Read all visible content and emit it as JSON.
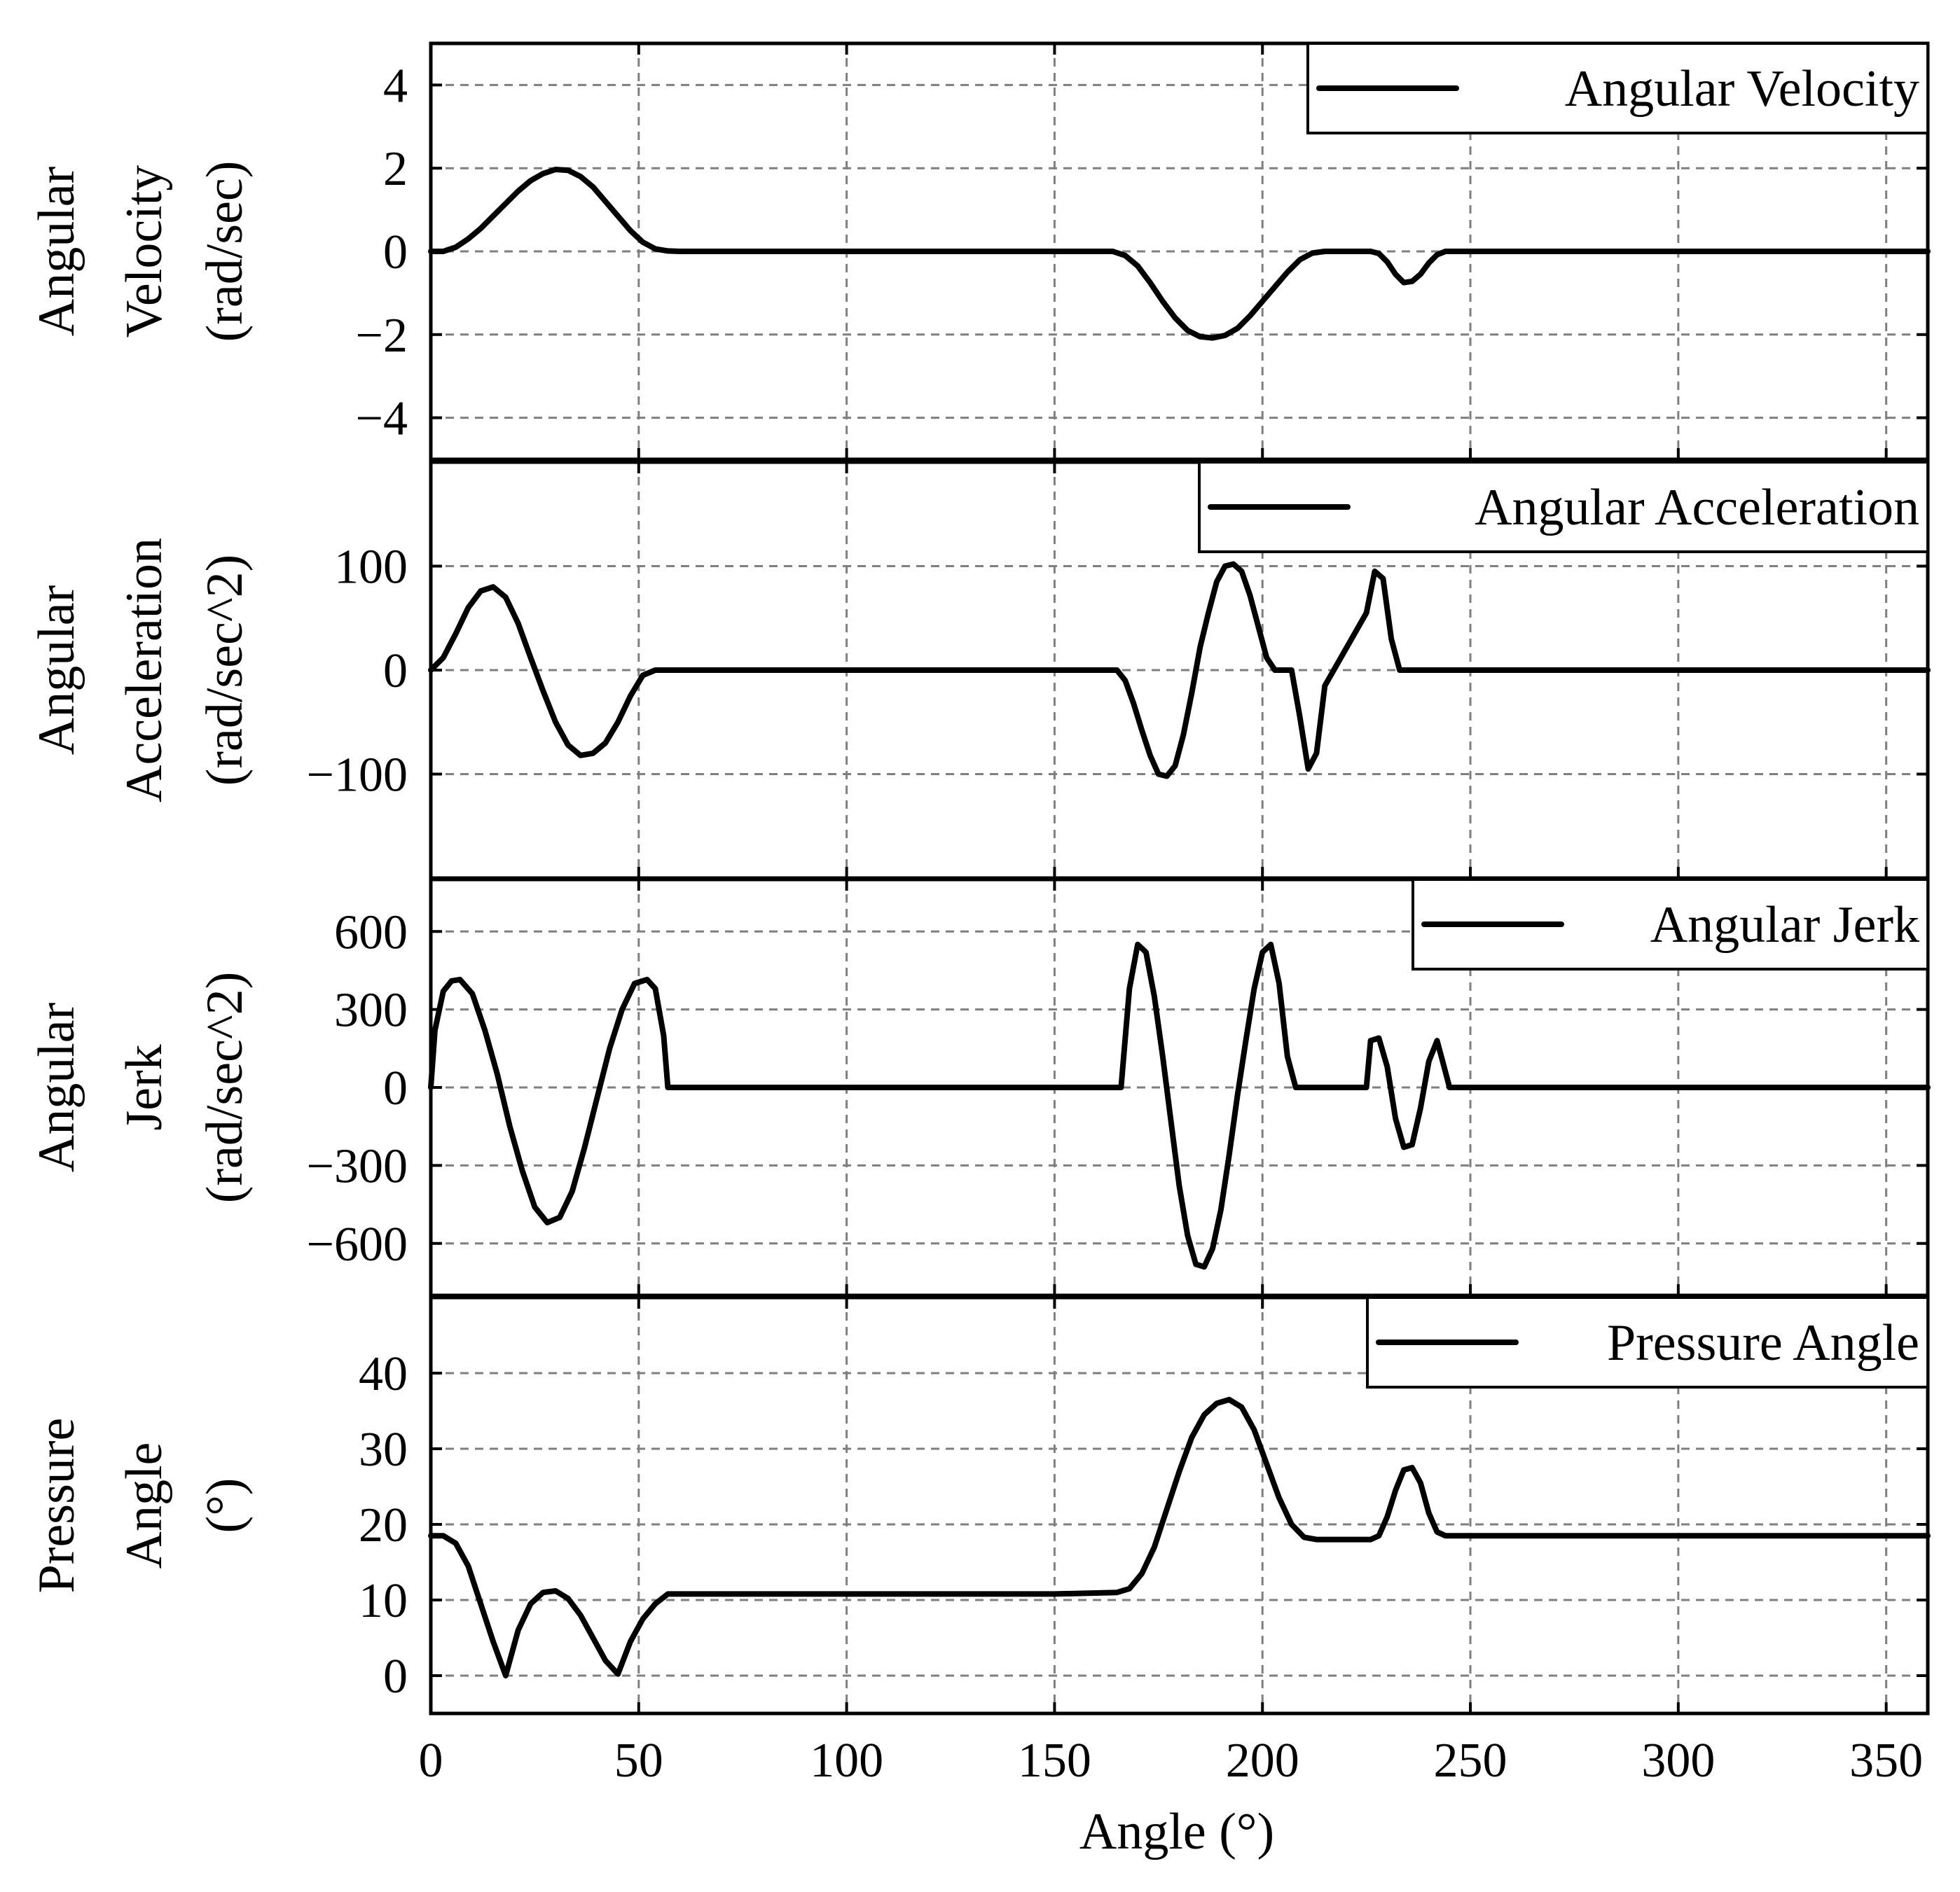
{
  "chart_data": [
    {
      "type": "line",
      "name": "velocity",
      "ylabel_lines": [
        "Angular",
        "Velocity",
        "(rad/sec)"
      ],
      "ylim": [
        -5,
        5
      ],
      "yticks": [
        4,
        2,
        0,
        -2,
        -4
      ],
      "ytick_labels": [
        "4",
        "2",
        "0",
        "−2",
        "−4"
      ],
      "legend": "Angular Velocity",
      "x": [
        0,
        3,
        6,
        9,
        12,
        15,
        18,
        21,
        24,
        27,
        30,
        33,
        36,
        39,
        42,
        45,
        48,
        51,
        54,
        57,
        60,
        100,
        150,
        164,
        167,
        170,
        173,
        176,
        179,
        182,
        185,
        188,
        191,
        194,
        197,
        200,
        203,
        206,
        209,
        212,
        215,
        224,
        226,
        228,
        230,
        232,
        234,
        236,
        238,
        240,
        242,
        244,
        246,
        300,
        360
      ],
      "y": [
        0,
        0,
        0.1,
        0.3,
        0.55,
        0.85,
        1.15,
        1.45,
        1.7,
        1.87,
        1.97,
        1.95,
        1.8,
        1.55,
        1.2,
        0.85,
        0.5,
        0.22,
        0.06,
        0.01,
        0,
        0,
        0,
        0,
        -0.1,
        -0.35,
        -0.75,
        -1.2,
        -1.6,
        -1.9,
        -2.05,
        -2.08,
        -2.02,
        -1.85,
        -1.55,
        -1.2,
        -0.85,
        -0.5,
        -0.2,
        -0.04,
        0,
        0,
        0,
        -0.05,
        -0.25,
        -0.55,
        -0.75,
        -0.72,
        -0.55,
        -0.28,
        -0.08,
        0,
        0,
        0,
        0
      ]
    },
    {
      "type": "line",
      "name": "acceleration",
      "ylabel_lines": [
        "Angular",
        "Acceleration",
        "(rad/sec^2)"
      ],
      "ylim": [
        -200,
        200
      ],
      "yticks": [
        100,
        0,
        -100
      ],
      "ytick_labels": [
        "100",
        "0",
        "−100"
      ],
      "legend": "Angular Acceleration",
      "x": [
        0,
        3,
        6,
        9,
        12,
        15,
        18,
        21,
        24,
        27,
        30,
        33,
        36,
        39,
        42,
        45,
        48,
        51,
        54,
        57,
        60,
        100,
        165,
        167,
        169,
        171,
        173,
        175,
        177,
        179,
        181,
        183,
        185,
        187,
        189,
        191,
        193,
        195,
        197,
        199,
        201,
        203,
        205,
        207,
        209,
        211,
        213,
        215,
        225,
        227,
        229,
        231,
        233,
        235,
        237,
        239,
        241,
        243,
        245,
        300,
        360
      ],
      "y": [
        0,
        12,
        35,
        60,
        76,
        80,
        70,
        45,
        12,
        -20,
        -50,
        -72,
        -82,
        -80,
        -70,
        -50,
        -25,
        -5,
        0,
        0,
        0,
        0,
        0,
        -10,
        -32,
        -58,
        -82,
        -100,
        -102,
        -92,
        -62,
        -22,
        22,
        55,
        85,
        100,
        102,
        95,
        72,
        42,
        12,
        0,
        0,
        0,
        -45,
        -95,
        -80,
        -15,
        55,
        95,
        88,
        30,
        0,
        0,
        0,
        0,
        0,
        0,
        0,
        0,
        0
      ],
      "y_note": "values per x listed in order"
    },
    {
      "type": "line",
      "name": "jerk",
      "ylabel_lines": [
        "Angular",
        "Jerk",
        "(rad/sec^2)"
      ],
      "ylim": [
        -800,
        800
      ],
      "yticks": [
        600,
        300,
        0,
        -300,
        -600
      ],
      "ytick_labels": [
        "600",
        "300",
        "0",
        "−300",
        "−600"
      ],
      "legend": "Angular Jerk",
      "x": [
        0,
        1,
        3,
        5,
        7,
        10,
        13,
        16,
        19,
        22,
        25,
        28,
        31,
        34,
        37,
        40,
        43,
        46,
        49,
        52,
        54,
        56,
        57,
        59,
        60,
        100,
        165,
        166,
        168,
        170,
        172,
        174,
        176,
        178,
        180,
        182,
        184,
        186,
        188,
        190,
        192,
        194,
        196,
        198,
        200,
        202,
        204,
        206,
        208,
        210,
        212,
        214,
        215,
        225,
        226,
        228,
        230,
        232,
        234,
        236,
        238,
        240,
        242,
        243,
        245,
        246,
        300,
        360
      ],
      "y": [
        0,
        220,
        370,
        410,
        415,
        360,
        220,
        50,
        -150,
        -320,
        -460,
        -520,
        -500,
        -400,
        -230,
        -40,
        150,
        300,
        400,
        415,
        380,
        200,
        0,
        0,
        0,
        0,
        0,
        0,
        380,
        550,
        520,
        350,
        120,
        -130,
        -380,
        -570,
        -680,
        -690,
        -620,
        -470,
        -260,
        -30,
        180,
        380,
        520,
        550,
        400,
        120,
        0,
        0,
        0,
        0,
        0,
        0,
        180,
        190,
        80,
        -120,
        -230,
        -220,
        -80,
        100,
        180,
        120,
        0,
        0,
        0,
        0
      ],
      "y_note": "values per x listed in order"
    },
    {
      "type": "line",
      "name": "pressure",
      "ylabel_lines": [
        "Pressure",
        "Angle",
        "(°)"
      ],
      "ylim": [
        -5,
        50
      ],
      "yticks": [
        40,
        30,
        20,
        10,
        0
      ],
      "ytick_labels": [
        "40",
        "30",
        "20",
        "10",
        "0"
      ],
      "legend": "Pressure Angle",
      "x": [
        0,
        3,
        6,
        9,
        12,
        15,
        18,
        21,
        24,
        27,
        30,
        33,
        36,
        39,
        42,
        45,
        48,
        51,
        54,
        57,
        100,
        150,
        165,
        168,
        171,
        174,
        177,
        180,
        183,
        186,
        189,
        192,
        195,
        198,
        201,
        204,
        207,
        210,
        213,
        216,
        226,
        228,
        230,
        232,
        234,
        236,
        238,
        240,
        242,
        244,
        246,
        300,
        360
      ],
      "y": [
        18.5,
        18.5,
        17.5,
        14.5,
        9.5,
        4.5,
        0,
        6,
        9.5,
        11,
        11.2,
        10.2,
        8,
        5,
        2,
        0.2,
        4.5,
        7.5,
        9.5,
        10.8,
        10.8,
        10.8,
        11,
        11.5,
        13.5,
        17,
        22,
        27,
        31.5,
        34.5,
        36,
        36.5,
        35.5,
        32.5,
        28,
        23.5,
        20,
        18.3,
        18,
        18,
        18,
        18.5,
        21,
        24.5,
        27.2,
        27.5,
        25.5,
        21.5,
        19,
        18.5,
        18.5,
        18.5,
        18.5
      ],
      "y_note": "values per x listed in order"
    }
  ],
  "x_axis": {
    "label": "Angle (°)",
    "xlim": [
      0,
      360
    ],
    "ticks": [
      0,
      50,
      100,
      150,
      200,
      250,
      300,
      350
    ],
    "tick_labels": [
      "0",
      "50",
      "100",
      "150",
      "200",
      "250",
      "300",
      "350"
    ]
  },
  "style": {
    "line_color": "#000000",
    "grid_color": "#7f7f7f",
    "grid": true,
    "legend_position": "top-right"
  }
}
